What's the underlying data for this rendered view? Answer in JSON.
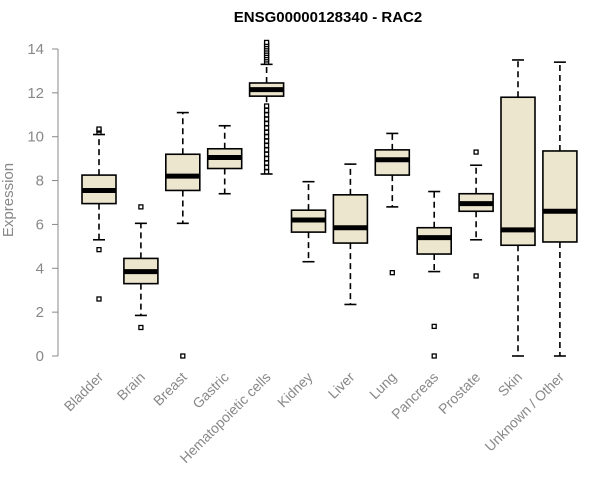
{
  "chart_data": {
    "type": "box",
    "title": "ENSG00000128340 - RAC2",
    "xlabel": "",
    "ylabel": "Expression",
    "ylim": [
      0,
      14
    ],
    "yticks": [
      "0",
      "2",
      "4",
      "6",
      "8",
      "10",
      "12",
      "14"
    ],
    "grid": false,
    "colors": {
      "box_fill": "#ede6ce",
      "stroke": "#000000",
      "axis_text": "#888888"
    },
    "categories": [
      "Bladder",
      "Brain",
      "Breast",
      "Gastric",
      "Hematopoietic cells",
      "Kidney",
      "Liver",
      "Lung",
      "Pancreas",
      "Prostate",
      "Skin",
      "Unknown / Other"
    ],
    "boxes": [
      {
        "min": 5.3,
        "q1": 6.95,
        "median": 7.55,
        "q3": 8.25,
        "max": 10.1,
        "outliers": [
          10.2,
          10.3,
          10.35,
          4.85,
          2.6
        ]
      },
      {
        "min": 1.85,
        "q1": 3.3,
        "median": 3.85,
        "q3": 4.45,
        "max": 6.05,
        "outliers": [
          6.8,
          1.3
        ]
      },
      {
        "min": 6.05,
        "q1": 7.55,
        "median": 8.2,
        "q3": 9.2,
        "max": 11.1,
        "outliers": [
          0.0
        ]
      },
      {
        "min": 7.4,
        "q1": 8.55,
        "median": 9.05,
        "q3": 9.45,
        "max": 10.5,
        "outliers": []
      },
      {
        "min": 8.3,
        "q1": 11.85,
        "median": 12.15,
        "q3": 12.45,
        "max": 13.3,
        "outliers": [
          13.4,
          13.5,
          13.6,
          13.7,
          13.8,
          13.9,
          14.0,
          14.1,
          14.2,
          14.3,
          11.0,
          10.8,
          10.6,
          10.4,
          10.2,
          10.0,
          9.8,
          9.6,
          9.4,
          9.2,
          9.0,
          8.8,
          8.6,
          8.4,
          11.2,
          11.4
        ]
      },
      {
        "min": 4.3,
        "q1": 5.65,
        "median": 6.2,
        "q3": 6.65,
        "max": 7.95,
        "outliers": []
      },
      {
        "min": 2.35,
        "q1": 5.15,
        "median": 5.85,
        "q3": 7.35,
        "max": 8.75,
        "outliers": []
      },
      {
        "min": 6.8,
        "q1": 8.25,
        "median": 8.95,
        "q3": 9.4,
        "max": 10.15,
        "outliers": [
          3.8
        ]
      },
      {
        "min": 3.85,
        "q1": 4.65,
        "median": 5.4,
        "q3": 5.85,
        "max": 7.5,
        "outliers": [
          1.35,
          0.0
        ]
      },
      {
        "min": 5.3,
        "q1": 6.6,
        "median": 6.95,
        "q3": 7.4,
        "max": 8.7,
        "outliers": [
          9.3,
          3.65
        ]
      },
      {
        "min": 0.0,
        "q1": 5.05,
        "median": 5.75,
        "q3": 11.8,
        "max": 13.5,
        "outliers": []
      },
      {
        "min": 0.0,
        "q1": 5.2,
        "median": 6.6,
        "q3": 9.35,
        "max": 13.4,
        "outliers": []
      }
    ]
  }
}
